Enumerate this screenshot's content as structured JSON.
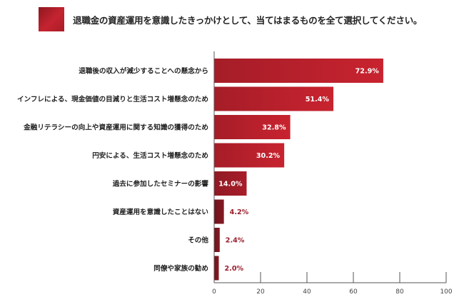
{
  "title": "退職金の資産運用を意識したきっかけとして、当てはまるものを全て選択してください。",
  "colors": {
    "title_square": "#b3212b",
    "bar_high": "#c0222e",
    "bar_mid": "#9e1c28",
    "bar_low": "#7a1620",
    "value_outside": "#9b1c2a",
    "axis": "#555555"
  },
  "chart_data": {
    "type": "bar",
    "orientation": "horizontal",
    "categories": [
      "退職後の収入が減少することへの懸念から",
      "インフレによる、現金価値の目減りと生活コスト増懸念のため",
      "金融リテラシーの向上や資産運用に関する知識の獲得のため",
      "円安による、生活コスト増懸念のため",
      "過去に参加したセミナーの影響",
      "資産運用を意識したことはない",
      "その他",
      "同僚や家族の勧め"
    ],
    "values": [
      72.9,
      51.4,
      32.8,
      30.2,
      14.0,
      4.2,
      2.4,
      2.0
    ],
    "value_labels": [
      "72.9%",
      "51.4%",
      "32.8%",
      "30.2%",
      "14.0%",
      "4.2%",
      "2.4%",
      "2.0%"
    ],
    "xlim": [
      0,
      100
    ],
    "xticks": [
      0,
      20,
      40,
      60,
      80,
      100
    ],
    "xtick_labels": [
      "0",
      "20",
      "40",
      "60",
      "80",
      "100"
    ],
    "grid": false,
    "legend": "none"
  }
}
